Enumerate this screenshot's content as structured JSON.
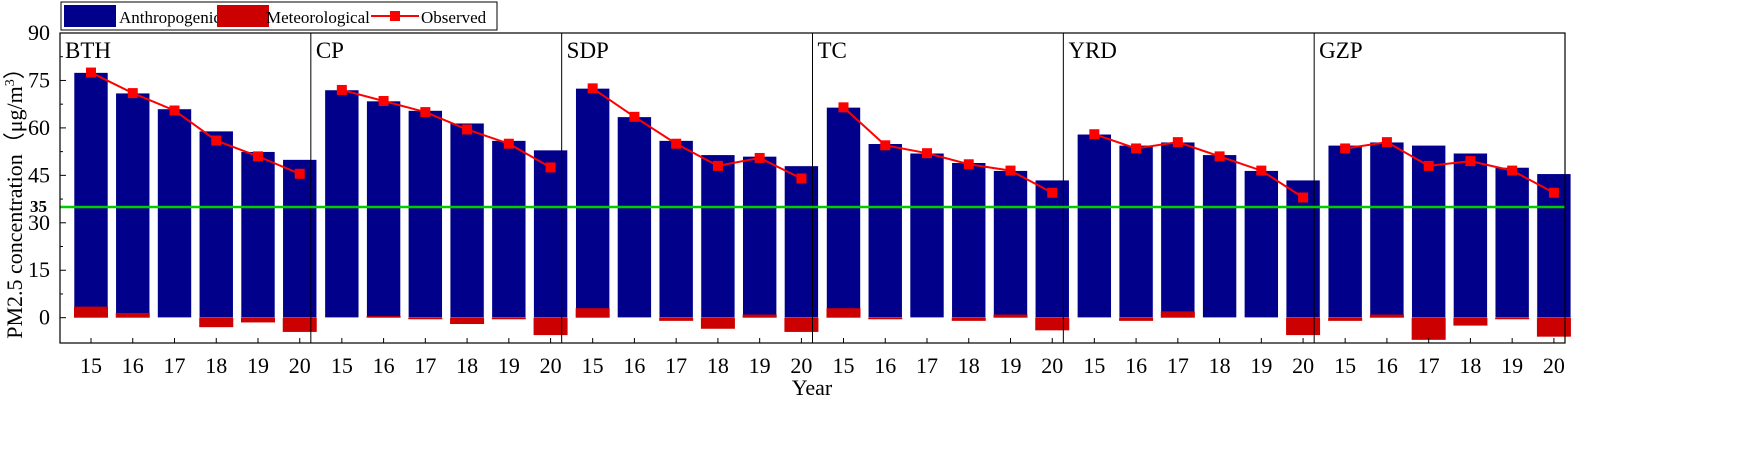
{
  "chart_data": {
    "type": "bar",
    "ylabel": "PM2.5 concentration（μg/m",
    "ylabel_sup": "3",
    "ylabel_end": "）",
    "xlabel": "Year",
    "ylim": [
      -8,
      90
    ],
    "yticks": [
      "90",
      "75",
      "60",
      "45",
      "30",
      "15",
      "0"
    ],
    "ytick_values": [
      90,
      75,
      60,
      45,
      30,
      15,
      0
    ],
    "threshold": {
      "value": 35,
      "label": "35",
      "color": "#00cc00",
      "label_color": "#ff0000"
    },
    "categories": [
      "15",
      "16",
      "17",
      "18",
      "19",
      "20"
    ],
    "legend": {
      "anthropogenic": "Anthropogenic",
      "meteorological": "Meteorological",
      "observed": "Observed"
    },
    "colors": {
      "anthropogenic": "#00008b",
      "meteorological": "#cc0000",
      "observed": "#ff0000"
    },
    "panels": [
      {
        "region": "BTH",
        "anthropogenic": [
          77.5,
          71,
          66,
          59,
          52.5,
          50
        ],
        "meteorological": [
          3.5,
          1.5,
          0,
          -3,
          -1.5,
          -4.5
        ],
        "observed": [
          77.5,
          71,
          65.5,
          56,
          51,
          45.5
        ]
      },
      {
        "region": "CP",
        "anthropogenic": [
          72,
          68.5,
          65.5,
          61.5,
          56,
          53
        ],
        "meteorological": [
          0,
          0.5,
          -0.5,
          -2,
          -0.5,
          -5.5
        ],
        "observed": [
          72,
          68.5,
          65,
          59.5,
          55,
          47.5
        ]
      },
      {
        "region": "SDP",
        "anthropogenic": [
          72.5,
          63.5,
          56,
          51.5,
          51,
          48
        ],
        "meteorological": [
          3,
          0,
          -1,
          -3.5,
          1,
          -4.5
        ],
        "observed": [
          72.5,
          63.5,
          55,
          48,
          50.5,
          44
        ]
      },
      {
        "region": "TC",
        "anthropogenic": [
          66.5,
          55,
          52,
          49,
          46.5,
          43.5
        ],
        "meteorological": [
          3,
          -0.5,
          0,
          -1,
          1,
          -4
        ],
        "observed": [
          66.5,
          54.5,
          52,
          48.5,
          46.5,
          39.5
        ]
      },
      {
        "region": "YRD",
        "anthropogenic": [
          58,
          54.5,
          55.5,
          51.5,
          46.5,
          43.5
        ],
        "meteorological": [
          0,
          -1,
          2,
          0,
          0,
          -5.5
        ],
        "observed": [
          58,
          53.5,
          55.5,
          51,
          46.5,
          38
        ]
      },
      {
        "region": "GZP",
        "anthropogenic": [
          54.5,
          55.5,
          54.5,
          52,
          47.5,
          45.5
        ],
        "meteorological": [
          -1,
          1,
          -7,
          -2.5,
          -0.5,
          -6
        ],
        "observed": [
          53.5,
          55.5,
          48,
          49.5,
          46.5,
          39.5
        ]
      }
    ]
  }
}
